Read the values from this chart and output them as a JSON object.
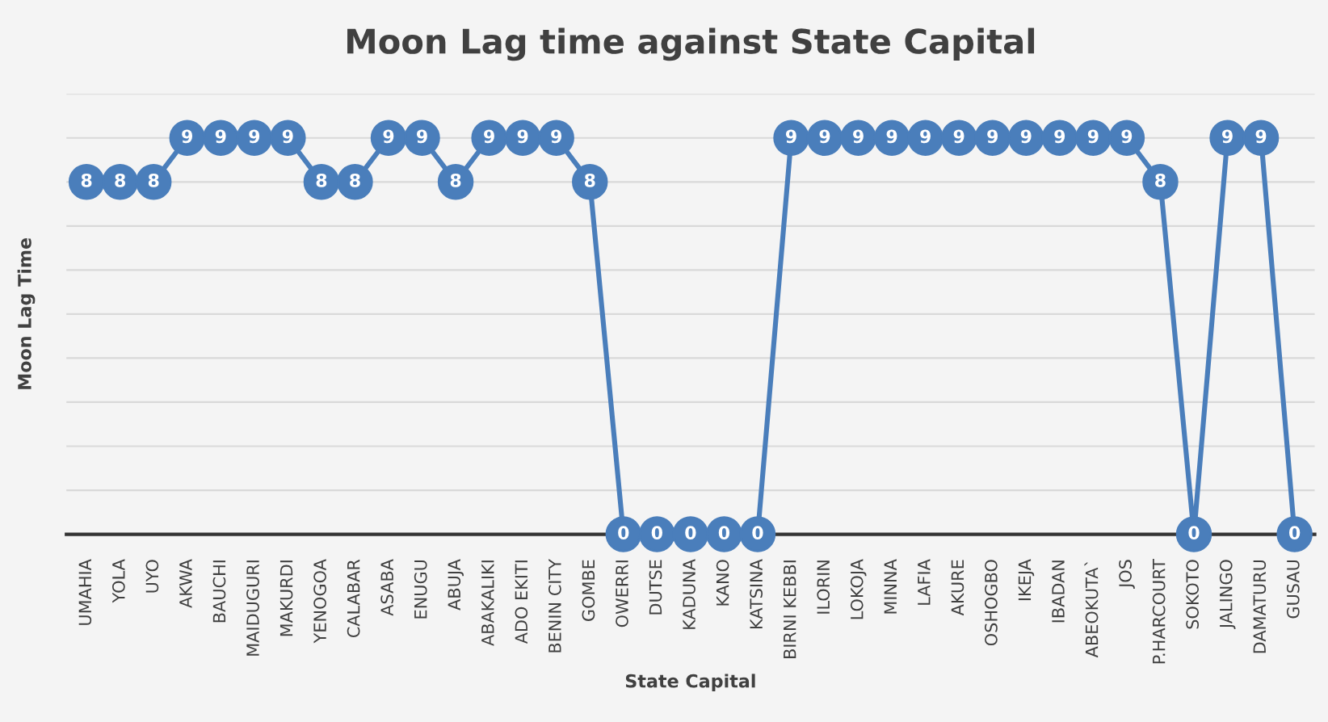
{
  "chart_data": {
    "type": "line",
    "title": "Moon Lag time against State Capital",
    "xlabel": "State Capital",
    "ylabel": "Moon Lag Time",
    "categories": [
      "UMAHIA",
      "YOLA",
      "UYO",
      "AKWA",
      "BAUCHI",
      "MAIDUGURI",
      "MAKURDI",
      "YENOGOA",
      "CALABAR",
      "ASABA",
      "ENUGU",
      "ABUJA",
      "ABAKALIKI",
      "ADO EKITI",
      "BENIN CITY",
      "GOMBE",
      "OWERRI",
      "DUTSE",
      "KADUNA",
      "KANO",
      "KATSINA",
      "BIRNI KEBBI",
      "ILORIN",
      "LOKOJA",
      "MINNA",
      "LAFIA",
      "AKURE",
      "OSHOGBO",
      "IKEJA",
      "IBADAN",
      "ABEOKUTA`",
      "JOS",
      "P.HARCOURT",
      "SOKOTO",
      "JALINGO",
      "DAMATURU",
      "GUSAU"
    ],
    "series": [
      {
        "color": "#4a7ebb",
        "values": [
          8,
          8,
          8,
          9,
          9,
          9,
          9,
          8,
          8,
          9,
          9,
          8,
          9,
          9,
          9,
          8,
          0,
          0,
          0,
          0,
          0,
          9,
          9,
          9,
          9,
          9,
          9,
          9,
          9,
          9,
          9,
          9,
          8,
          0,
          9,
          9,
          0
        ]
      }
    ],
    "ylim": [
      0,
      10
    ],
    "yticks": [
      {
        "value": 0,
        "label": null
      },
      {
        "value": 1,
        "label": null
      },
      {
        "value": 2,
        "label": null
      },
      {
        "value": 3,
        "label": null
      },
      {
        "value": 4,
        "label": null
      },
      {
        "value": 5,
        "label": null
      },
      {
        "value": 6,
        "label": null
      },
      {
        "value": 7,
        "label": null
      },
      {
        "value": 8,
        "label": null
      },
      {
        "value": 9,
        "label": null
      },
      {
        "value": 10,
        "label": null
      }
    ],
    "tick_labels": "x",
    "grid": "y",
    "marker": "circle",
    "line_style": "solid",
    "data_labels": true,
    "legend": false
  }
}
